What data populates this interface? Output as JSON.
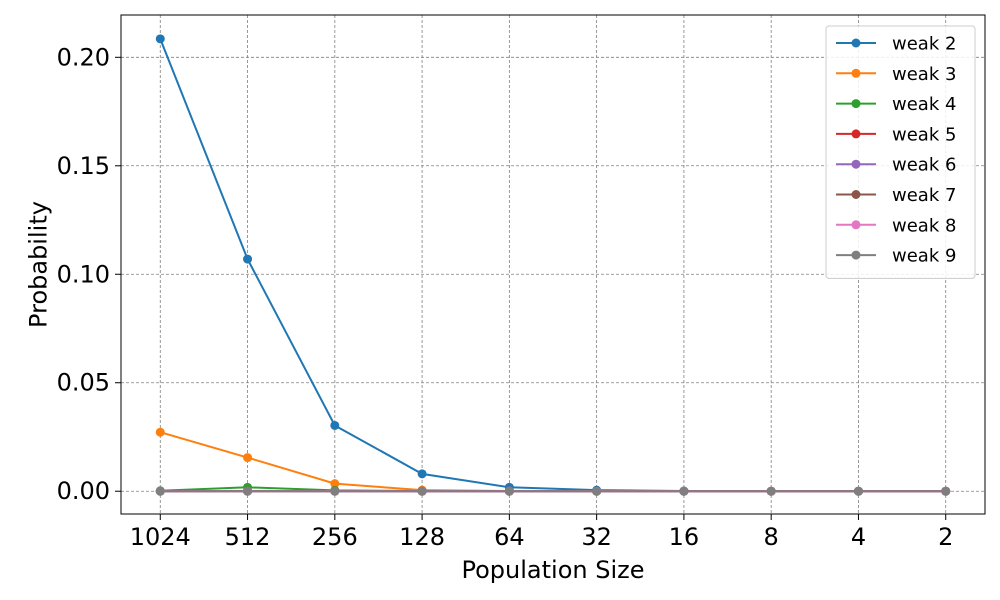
{
  "chart_data": {
    "type": "line",
    "xlabel": "Population Size",
    "ylabel": "Probability",
    "categories": [
      "1024",
      "512",
      "256",
      "128",
      "64",
      "32",
      "16",
      "8",
      "4",
      "2"
    ],
    "yticks": [
      "0.00",
      "0.05",
      "0.10",
      "0.15",
      "0.20"
    ],
    "ylim": [
      -0.0105,
      0.2195
    ],
    "grid": true,
    "legend_position": "top-right",
    "series": [
      {
        "name": "weak 2",
        "color": "#1f77b4",
        "values": [
          0.2085,
          0.107,
          0.0303,
          0.008,
          0.0018,
          0.0005,
          0.0001,
          0.0,
          0.0,
          0.0
        ]
      },
      {
        "name": "weak 3",
        "color": "#ff7f0e",
        "values": [
          0.0272,
          0.0155,
          0.0035,
          0.0005,
          0.0001,
          0.0,
          0.0,
          0.0,
          0.0,
          0.0
        ]
      },
      {
        "name": "weak 4",
        "color": "#2ca02c",
        "values": [
          0.0002,
          0.0018,
          0.0004,
          0.0001,
          0.0,
          0.0,
          0.0,
          0.0,
          0.0,
          0.0
        ]
      },
      {
        "name": "weak 5",
        "color": "#d62728",
        "values": [
          0.0,
          0.0001,
          0.0001,
          0.0,
          0.0,
          0.0,
          0.0,
          0.0,
          0.0,
          0.0
        ]
      },
      {
        "name": "weak 6",
        "color": "#9467bd",
        "values": [
          0.0,
          0.0,
          0.0,
          0.0,
          0.0,
          0.0,
          0.0,
          0.0,
          0.0,
          0.0
        ]
      },
      {
        "name": "weak 7",
        "color": "#8c564b",
        "values": [
          0.0,
          0.0,
          0.0,
          0.0,
          0.0,
          0.0,
          0.0,
          0.0,
          0.0,
          0.0
        ]
      },
      {
        "name": "weak 8",
        "color": "#e377c2",
        "values": [
          0.0,
          0.0,
          0.0,
          0.0,
          0.0,
          0.0,
          0.0,
          0.0,
          0.0,
          0.0
        ]
      },
      {
        "name": "weak 9",
        "color": "#7f7f7f",
        "values": [
          0.0,
          0.0,
          0.0,
          0.0,
          0.0,
          0.0,
          0.0,
          0.0,
          0.0,
          0.0
        ]
      }
    ]
  }
}
